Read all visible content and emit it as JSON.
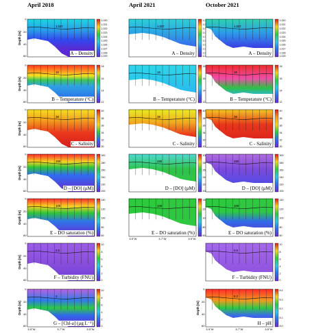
{
  "columns": [
    {
      "title": "April 2018"
    },
    {
      "title": "April 2021"
    },
    {
      "title": "October 2021"
    }
  ],
  "depth_label": "Depth [m]",
  "depth_ticks": [
    "0",
    "20",
    "40",
    "60"
  ],
  "lon_ticks": [
    "5.9°W",
    "5.7°W",
    "5.5°W",
    "5.3°W"
  ],
  "variables": {
    "A": {
      "label": "A – Density",
      "colorbar": [
        "1.020",
        "1.021",
        "1.022",
        "1.023",
        "1.024",
        "1.025",
        "1.026",
        "1.027",
        "1.028",
        "1.029"
      ],
      "contours": [
        "1.026",
        "1.027",
        "1.028"
      ]
    },
    "B": {
      "label": "B – Temperature (°C)",
      "colorbar": [
        "18",
        "16",
        "14",
        "12"
      ],
      "contours": [
        "15",
        "16",
        "18"
      ]
    },
    "C": {
      "label": "C - Salinity",
      "colorbar": [
        "40",
        "38",
        "36",
        "34",
        "32",
        "30"
      ],
      "contours": [
        "37",
        "38"
      ]
    },
    "D": {
      "label": "D – [DO] (μM)",
      "colorbar": [
        "300",
        "280",
        "260",
        "240",
        "220",
        "200"
      ],
      "contours": [
        "260",
        "280"
      ]
    },
    "E": {
      "label": "E – DO saturation (%)",
      "colorbar": [
        "140",
        "120",
        "100",
        "80",
        "60"
      ],
      "contours": [
        "80",
        "100"
      ]
    },
    "F": {
      "label": "F – Turbidity (FNU)",
      "colorbar": [
        "10",
        "8",
        "6",
        "4",
        "2",
        "0"
      ],
      "contours": [
        "0.5"
      ]
    },
    "G": {
      "label": "G – [Chl-a] (µg L⁻¹)",
      "colorbar": [
        "10",
        "8",
        "6",
        "4",
        "2",
        "0"
      ],
      "contours": [
        "0.5",
        "2"
      ]
    },
    "H": {
      "label": "H – pH",
      "colorbar": [
        "8.4",
        "8.3",
        "8.2",
        "8.1",
        "8.0"
      ],
      "contours": [
        "8.1",
        "8.2"
      ]
    }
  },
  "colors": {
    "red": "#e8201c",
    "orange": "#ff9a1e",
    "yellow": "#f5ea1e",
    "green": "#27c02c",
    "cyan": "#27d6e8",
    "blue": "#2e6ef0",
    "violet": "#9a52e6",
    "purple": "#6b2ad2"
  }
}
